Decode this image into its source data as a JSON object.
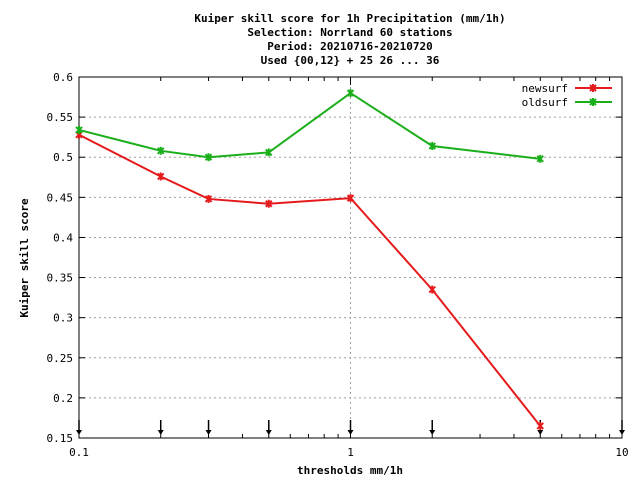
{
  "chart_data": {
    "type": "line",
    "title_lines": [
      "Kuiper skill score  for 1h Precipitation (mm/1h)",
      "Selection: Norrland     60 stations",
      "Period: 20210716-20210720",
      "Used {00,12} + 25 26 ... 36"
    ],
    "xlabel": "thresholds mm/1h",
    "ylabel": "Kuiper skill score",
    "x_scale": "log",
    "xlim": [
      0.1,
      10
    ],
    "ylim": [
      0.15,
      0.6
    ],
    "x_ticks": [
      0.1,
      1,
      10
    ],
    "x_tick_labels": [
      "0.1",
      "1",
      "10"
    ],
    "y_ticks": [
      0.15,
      0.2,
      0.25,
      0.3,
      0.35,
      0.4,
      0.45,
      0.5,
      0.55,
      0.6
    ],
    "y_tick_labels": [
      "0.15",
      "0.2",
      "0.25",
      "0.3",
      "0.35",
      "0.4",
      "0.45",
      "0.5",
      "0.55",
      "0.6"
    ],
    "x": [
      0.1,
      0.2,
      0.3,
      0.5,
      1,
      2,
      5
    ],
    "series": [
      {
        "name": "newsurf",
        "color": "#e41a1c",
        "values": [
          0.528,
          0.476,
          0.448,
          0.442,
          0.449,
          0.335,
          0.165
        ]
      },
      {
        "name": "oldsurf",
        "color": "#1aaf1a",
        "values": [
          0.534,
          0.508,
          0.5,
          0.506,
          0.58,
          0.514,
          0.498
        ]
      }
    ],
    "threshold_markers": [
      0.1,
      0.2,
      0.3,
      0.5,
      1,
      2,
      5,
      10
    ],
    "grid": "dashed at x=1 and all y ticks",
    "legend_position": "top-right"
  }
}
